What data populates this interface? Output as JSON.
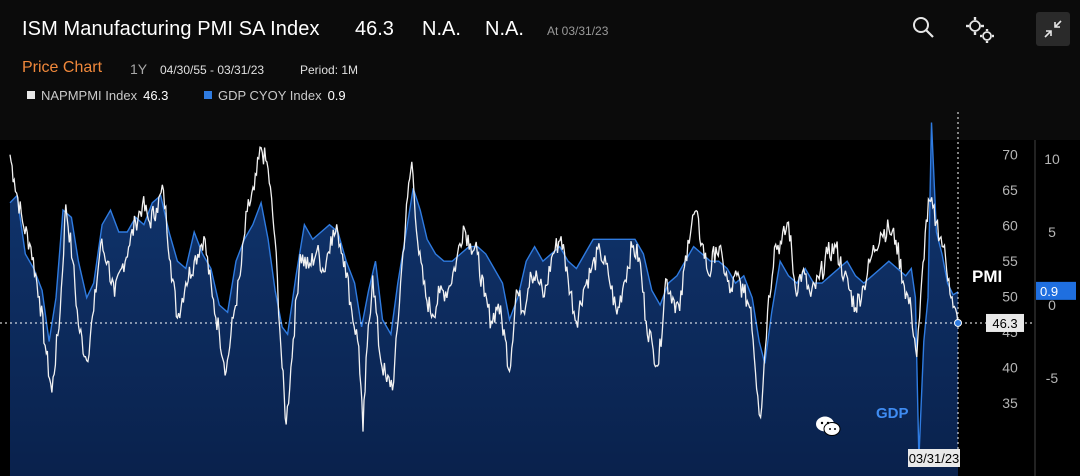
{
  "header": {
    "title": "ISM Manufacturing PMI SA Index",
    "last_value": "46.3",
    "na1": "N.A.",
    "na2": "N.A.",
    "as_of": "At 03/31/23",
    "chart_type_label": "Price Chart",
    "range_button": "1Y",
    "date_range": "04/30/55 - 03/31/23",
    "period": "Period: 1M"
  },
  "legend": [
    {
      "ticker": "NAPMPMI Index",
      "value": "46.3",
      "color": "#e8e8e8"
    },
    {
      "ticker": "GDP CYOY Index",
      "value": "0.9",
      "color": "#2f7be0"
    }
  ],
  "annotations": {
    "pmi_label": "PMI",
    "gdp_label": "GDP",
    "last_date": "03/31/23",
    "pmi_last_tag": "46.3",
    "gdp_last_tag": "0.9"
  },
  "icons": [
    "search-icon",
    "settings-gears-icon",
    "collapse-arrows-icon",
    "wechat-icon"
  ],
  "colors": {
    "background": "#000000",
    "pmi_line": "#f2f2f2",
    "gdp_line": "#2f7be0",
    "gdp_fill": "#0d2b5c",
    "accent": "#f0883b"
  },
  "chart_data": {
    "type": "line",
    "x_range": [
      "1955-04",
      "2023-03"
    ],
    "ylim_left": [
      30,
      72
    ],
    "yticks_left": [
      35,
      40,
      45,
      50,
      55,
      60,
      65,
      70
    ],
    "ylim_right": [
      -12,
      14
    ],
    "yticks_right": [
      -5,
      0,
      5,
      10
    ],
    "grid": false,
    "reference_line": 46.3,
    "series": [
      {
        "name": "NAPMPMI Index",
        "axis": "left",
        "last": 46.3,
        "points": [
          [
            1955.3,
            70.0
          ],
          [
            1955.6,
            66.5
          ],
          [
            1956.2,
            60.5
          ],
          [
            1956.8,
            57.0
          ],
          [
            1957.4,
            50.0
          ],
          [
            1957.9,
            42.0
          ],
          [
            1958.3,
            36.5
          ],
          [
            1958.9,
            48.0
          ],
          [
            1959.3,
            63.0
          ],
          [
            1959.8,
            55.0
          ],
          [
            1960.2,
            46.0
          ],
          [
            1960.8,
            41.0
          ],
          [
            1961.3,
            48.0
          ],
          [
            1961.8,
            57.5
          ],
          [
            1962.3,
            55.0
          ],
          [
            1962.8,
            50.0
          ],
          [
            1963.3,
            54.0
          ],
          [
            1963.8,
            57.0
          ],
          [
            1964.3,
            60.5
          ],
          [
            1964.8,
            63.0
          ],
          [
            1965.3,
            60.5
          ],
          [
            1965.8,
            62.5
          ],
          [
            1966.3,
            65.0
          ],
          [
            1966.8,
            55.0
          ],
          [
            1967.3,
            47.0
          ],
          [
            1967.9,
            52.0
          ],
          [
            1968.5,
            55.0
          ],
          [
            1969.2,
            58.5
          ],
          [
            1969.8,
            50.0
          ],
          [
            1970.3,
            45.0
          ],
          [
            1970.8,
            39.5
          ],
          [
            1971.3,
            47.0
          ],
          [
            1971.8,
            53.0
          ],
          [
            1972.3,
            62.0
          ],
          [
            1972.8,
            65.0
          ],
          [
            1973.3,
            71.0
          ],
          [
            1973.8,
            68.0
          ],
          [
            1974.3,
            58.0
          ],
          [
            1974.8,
            40.0
          ],
          [
            1975.1,
            32.0
          ],
          [
            1975.6,
            44.0
          ],
          [
            1976.1,
            56.0
          ],
          [
            1976.7,
            54.0
          ],
          [
            1977.3,
            56.5
          ],
          [
            1977.8,
            53.5
          ],
          [
            1978.3,
            58.5
          ],
          [
            1978.8,
            59.0
          ],
          [
            1979.3,
            55.0
          ],
          [
            1979.8,
            48.0
          ],
          [
            1980.3,
            43.0
          ],
          [
            1980.6,
            31.0
          ],
          [
            1980.9,
            43.0
          ],
          [
            1981.3,
            53.0
          ],
          [
            1981.8,
            42.0
          ],
          [
            1982.3,
            38.0
          ],
          [
            1982.8,
            38.0
          ],
          [
            1983.3,
            52.0
          ],
          [
            1983.8,
            64.0
          ],
          [
            1984.1,
            69.0
          ],
          [
            1984.6,
            56.0
          ],
          [
            1985.1,
            50.0
          ],
          [
            1985.6,
            47.5
          ],
          [
            1986.1,
            50.5
          ],
          [
            1986.7,
            51.0
          ],
          [
            1987.3,
            55.0
          ],
          [
            1987.8,
            60.0
          ],
          [
            1988.3,
            57.5
          ],
          [
            1988.8,
            56.0
          ],
          [
            1989.3,
            50.0
          ],
          [
            1989.8,
            46.5
          ],
          [
            1990.3,
            49.0
          ],
          [
            1990.8,
            44.0
          ],
          [
            1991.1,
            39.5
          ],
          [
            1991.6,
            51.0
          ],
          [
            1992.1,
            48.0
          ],
          [
            1992.6,
            53.5
          ],
          [
            1993.1,
            52.5
          ],
          [
            1993.6,
            50.0
          ],
          [
            1994.2,
            56.0
          ],
          [
            1994.8,
            58.5
          ],
          [
            1995.3,
            52.5
          ],
          [
            1995.9,
            46.5
          ],
          [
            1996.4,
            51.0
          ],
          [
            1997.0,
            54.0
          ],
          [
            1997.6,
            56.5
          ],
          [
            1998.2,
            53.0
          ],
          [
            1998.8,
            47.5
          ],
          [
            1999.3,
            52.0
          ],
          [
            1999.9,
            57.0
          ],
          [
            2000.4,
            55.5
          ],
          [
            2000.9,
            46.5
          ],
          [
            2001.4,
            42.5
          ],
          [
            2001.8,
            40.5
          ],
          [
            2002.3,
            52.5
          ],
          [
            2002.9,
            49.5
          ],
          [
            2003.3,
            48.0
          ],
          [
            2003.9,
            58.0
          ],
          [
            2004.4,
            62.0
          ],
          [
            2004.9,
            57.5
          ],
          [
            2005.4,
            53.0
          ],
          [
            2005.9,
            57.0
          ],
          [
            2006.4,
            55.0
          ],
          [
            2006.9,
            50.5
          ],
          [
            2007.4,
            53.0
          ],
          [
            2007.9,
            50.5
          ],
          [
            2008.4,
            48.5
          ],
          [
            2008.9,
            36.0
          ],
          [
            2009.1,
            33.0
          ],
          [
            2009.6,
            48.0
          ],
          [
            2010.1,
            57.0
          ],
          [
            2010.6,
            57.5
          ],
          [
            2011.1,
            60.5
          ],
          [
            2011.6,
            51.0
          ],
          [
            2012.1,
            53.5
          ],
          [
            2012.7,
            50.0
          ],
          [
            2013.3,
            52.5
          ],
          [
            2013.9,
            56.0
          ],
          [
            2014.5,
            57.0
          ],
          [
            2015.1,
            53.0
          ],
          [
            2015.9,
            48.5
          ],
          [
            2016.5,
            51.5
          ],
          [
            2017.1,
            56.0
          ],
          [
            2017.7,
            59.0
          ],
          [
            2018.3,
            59.5
          ],
          [
            2018.8,
            58.0
          ],
          [
            2019.4,
            51.5
          ],
          [
            2019.9,
            48.0
          ],
          [
            2020.3,
            41.5
          ],
          [
            2020.5,
            47.0
          ],
          [
            2020.9,
            59.0
          ],
          [
            2021.2,
            63.5
          ],
          [
            2021.7,
            60.5
          ],
          [
            2022.2,
            57.0
          ],
          [
            2022.6,
            52.5
          ],
          [
            2022.9,
            48.5
          ],
          [
            2023.25,
            46.3
          ]
        ]
      },
      {
        "name": "GDP CYOY Index",
        "axis": "right",
        "last": 0.9,
        "points": [
          [
            1955.3,
            7.0
          ],
          [
            1955.8,
            7.5
          ],
          [
            1956.4,
            3.5
          ],
          [
            1957.0,
            2.5
          ],
          [
            1957.6,
            1.0
          ],
          [
            1958.1,
            -2.5
          ],
          [
            1958.6,
            0.5
          ],
          [
            1959.1,
            6.5
          ],
          [
            1959.7,
            6.0
          ],
          [
            1960.2,
            3.0
          ],
          [
            1960.8,
            0.5
          ],
          [
            1961.3,
            1.5
          ],
          [
            1961.9,
            5.5
          ],
          [
            1962.5,
            6.5
          ],
          [
            1963.1,
            5.0
          ],
          [
            1963.7,
            5.0
          ],
          [
            1964.3,
            6.0
          ],
          [
            1964.9,
            5.5
          ],
          [
            1965.5,
            7.0
          ],
          [
            1966.1,
            7.5
          ],
          [
            1966.7,
            5.0
          ],
          [
            1967.3,
            3.0
          ],
          [
            1967.9,
            2.5
          ],
          [
            1968.5,
            5.0
          ],
          [
            1969.1,
            3.5
          ],
          [
            1969.7,
            2.5
          ],
          [
            1970.3,
            0.0
          ],
          [
            1970.9,
            -0.5
          ],
          [
            1971.5,
            3.0
          ],
          [
            1972.1,
            4.5
          ],
          [
            1972.7,
            5.5
          ],
          [
            1973.3,
            7.0
          ],
          [
            1973.8,
            4.5
          ],
          [
            1974.3,
            1.0
          ],
          [
            1974.8,
            -1.5
          ],
          [
            1975.2,
            -2.0
          ],
          [
            1975.8,
            2.0
          ],
          [
            1976.4,
            5.5
          ],
          [
            1977.0,
            4.5
          ],
          [
            1977.6,
            5.0
          ],
          [
            1978.2,
            5.5
          ],
          [
            1978.8,
            5.0
          ],
          [
            1979.4,
            3.0
          ],
          [
            1980.0,
            1.5
          ],
          [
            1980.5,
            -1.5
          ],
          [
            1981.0,
            1.0
          ],
          [
            1981.5,
            3.0
          ],
          [
            1982.0,
            -1.0
          ],
          [
            1982.6,
            -2.0
          ],
          [
            1983.1,
            1.5
          ],
          [
            1983.7,
            5.0
          ],
          [
            1984.2,
            8.0
          ],
          [
            1984.7,
            6.5
          ],
          [
            1985.2,
            4.5
          ],
          [
            1985.8,
            3.5
          ],
          [
            1986.4,
            3.0
          ],
          [
            1987.0,
            3.0
          ],
          [
            1987.6,
            3.5
          ],
          [
            1988.2,
            4.0
          ],
          [
            1988.8,
            4.0
          ],
          [
            1989.4,
            3.5
          ],
          [
            1990.0,
            2.5
          ],
          [
            1990.6,
            1.5
          ],
          [
            1991.1,
            -1.0
          ],
          [
            1991.7,
            0.5
          ],
          [
            1992.3,
            3.0
          ],
          [
            1992.9,
            4.0
          ],
          [
            1993.5,
            3.0
          ],
          [
            1994.1,
            3.5
          ],
          [
            1994.7,
            4.0
          ],
          [
            1995.3,
            3.0
          ],
          [
            1995.9,
            2.5
          ],
          [
            1996.5,
            3.5
          ],
          [
            1997.1,
            4.5
          ],
          [
            1997.7,
            4.5
          ],
          [
            1998.3,
            4.5
          ],
          [
            1998.9,
            4.5
          ],
          [
            1999.5,
            4.5
          ],
          [
            2000.1,
            4.5
          ],
          [
            2000.7,
            3.5
          ],
          [
            2001.3,
            1.0
          ],
          [
            2001.9,
            0.0
          ],
          [
            2002.5,
            1.5
          ],
          [
            2003.1,
            2.0
          ],
          [
            2003.7,
            3.0
          ],
          [
            2004.3,
            4.0
          ],
          [
            2004.9,
            3.5
          ],
          [
            2005.5,
            3.0
          ],
          [
            2006.1,
            3.0
          ],
          [
            2006.7,
            2.5
          ],
          [
            2007.3,
            1.5
          ],
          [
            2007.9,
            2.0
          ],
          [
            2008.5,
            0.5
          ],
          [
            2009.0,
            -2.5
          ],
          [
            2009.4,
            -4.0
          ],
          [
            2009.9,
            -0.5
          ],
          [
            2010.5,
            3.0
          ],
          [
            2011.1,
            2.0
          ],
          [
            2011.7,
            1.5
          ],
          [
            2012.3,
            2.5
          ],
          [
            2012.9,
            1.5
          ],
          [
            2013.5,
            1.5
          ],
          [
            2014.1,
            2.0
          ],
          [
            2014.7,
            2.5
          ],
          [
            2015.3,
            3.0
          ],
          [
            2015.9,
            2.0
          ],
          [
            2016.5,
            1.5
          ],
          [
            2017.1,
            2.0
          ],
          [
            2017.7,
            2.5
          ],
          [
            2018.3,
            3.0
          ],
          [
            2018.9,
            2.5
          ],
          [
            2019.5,
            2.0
          ],
          [
            2019.9,
            2.5
          ],
          [
            2020.2,
            0.5
          ],
          [
            2020.45,
            -10.5
          ],
          [
            2020.8,
            -2.5
          ],
          [
            2021.1,
            0.5
          ],
          [
            2021.35,
            12.5
          ],
          [
            2021.7,
            5.0
          ],
          [
            2022.1,
            3.5
          ],
          [
            2022.5,
            1.5
          ],
          [
            2022.9,
            0.7
          ],
          [
            2023.25,
            0.9
          ]
        ]
      }
    ]
  }
}
